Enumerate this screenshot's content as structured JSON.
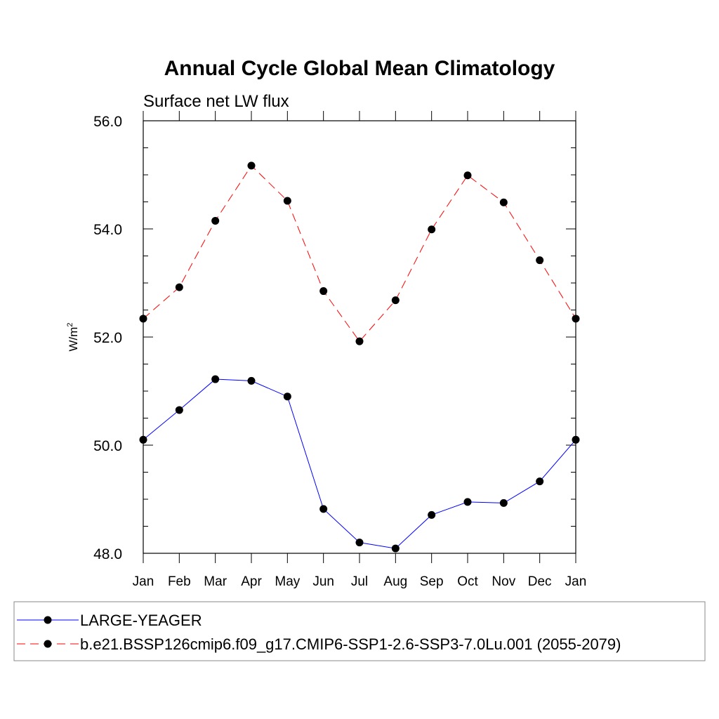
{
  "chart_data": {
    "type": "line",
    "title": "Annual Cycle Global Mean Climatology",
    "subtitle": "Surface net LW flux",
    "xlabel": "",
    "ylabel": "W/m",
    "ylabel_superscript": "2",
    "categories": [
      "Jan",
      "Feb",
      "Mar",
      "Apr",
      "May",
      "Jun",
      "Jul",
      "Aug",
      "Sep",
      "Oct",
      "Nov",
      "Dec",
      "Jan"
    ],
    "ylim": [
      48.0,
      56.0
    ],
    "yticks": [
      "48.0",
      "50.0",
      "52.0",
      "54.0",
      "56.0"
    ],
    "grid": false,
    "legend_position": "bottom",
    "series": [
      {
        "name": "LARGE-YEAGER",
        "color": "#0000ff",
        "line_style": "solid",
        "marker": "filled-circle",
        "values": [
          50.1,
          50.65,
          51.22,
          51.19,
          50.9,
          48.82,
          48.2,
          48.09,
          48.71,
          48.95,
          48.93,
          49.33,
          50.1
        ]
      },
      {
        "name": "b.e21.BSSP126cmip6.f09_g17.CMIP6-SSP1-2.6-SSP3-7.0Lu.001 (2055-2079)",
        "color": "#ff0000",
        "line_style": "dashed",
        "marker": "filled-circle",
        "values": [
          52.34,
          52.92,
          54.15,
          55.17,
          54.52,
          52.85,
          51.92,
          52.68,
          53.99,
          54.99,
          54.49,
          53.42,
          52.34
        ]
      }
    ]
  }
}
